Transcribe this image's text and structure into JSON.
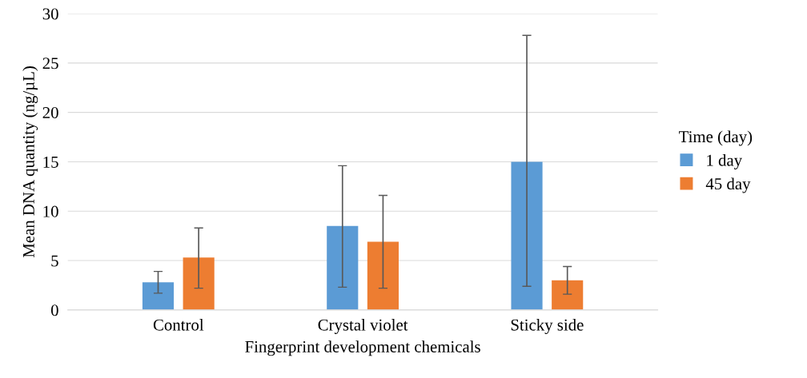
{
  "chart_data": {
    "type": "bar",
    "xlabel": "Fingerprint development chemicals",
    "ylabel": "Mean DNA quantity (ng/µL)",
    "legend_title": "Time (day)",
    "categories": [
      "Control",
      "Crystal violet",
      "Sticky side"
    ],
    "series": [
      {
        "name": "1 day",
        "color": "#5b9bd5",
        "values": [
          2.8,
          8.5,
          15.0
        ],
        "errors": [
          [
            1.7,
            3.9
          ],
          [
            2.3,
            14.6
          ],
          [
            2.4,
            27.8
          ]
        ]
      },
      {
        "name": "45 day",
        "color": "#ed7d31",
        "values": [
          5.3,
          6.9,
          3.0
        ],
        "errors": [
          [
            2.2,
            8.3
          ],
          [
            2.2,
            11.6
          ],
          [
            1.6,
            4.4
          ]
        ]
      }
    ],
    "ylim": [
      0,
      30
    ],
    "yticks": [
      0,
      5,
      10,
      15,
      20,
      25,
      30
    ],
    "grid": "y",
    "legend": "right"
  }
}
